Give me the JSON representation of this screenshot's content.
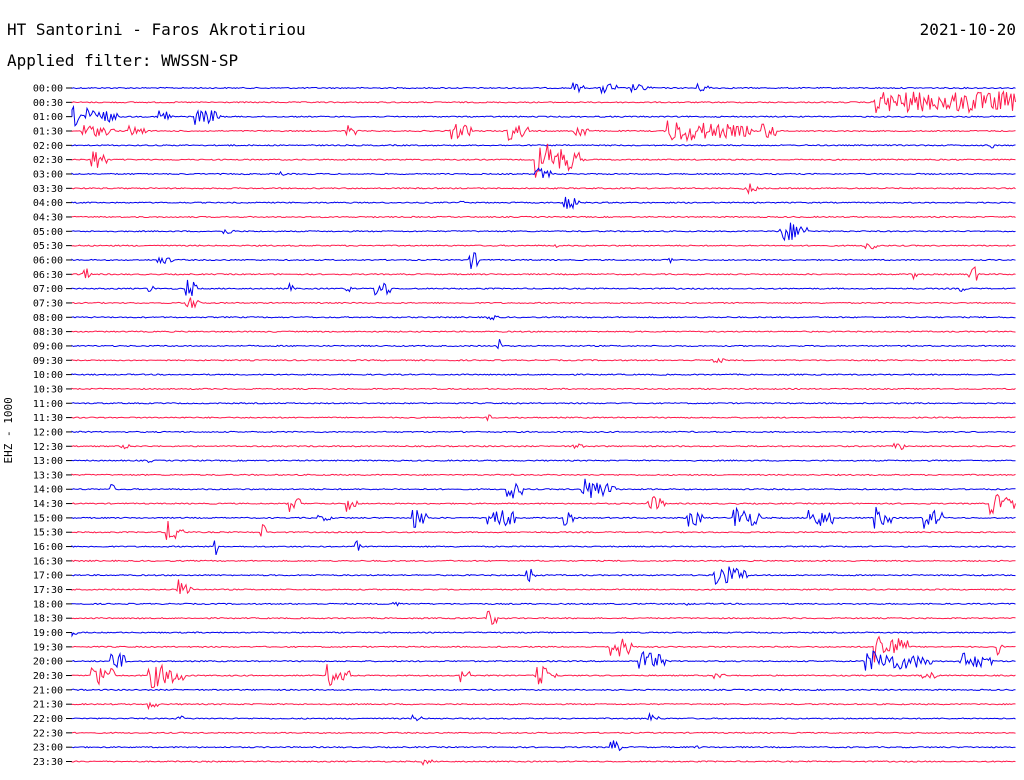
{
  "header": {
    "title": "HT Santorini - Faros Akrotiriou",
    "date": "2021-10-20",
    "filter": "Applied filter: WWSSN-SP"
  },
  "chart_data": {
    "type": "line",
    "subtype": "helicorder",
    "title": "HT Santorini - Faros Akrotiriou",
    "ylabel": "EHZ - 1000",
    "xlabel": "",
    "row_colors": [
      "#0000ee",
      "#ff1a4b"
    ],
    "rows": [
      {
        "label": "00:00",
        "bursts": [
          [
            0.53,
            2,
            0.5
          ],
          [
            0.56,
            3,
            0.6
          ],
          [
            0.59,
            4,
            0.4
          ],
          [
            0.66,
            3,
            0.4
          ],
          [
            0.85,
            0,
            0
          ]
        ]
      },
      {
        "label": "00:30",
        "bursts": [
          [
            0.85,
            12,
            1.0
          ],
          [
            0.88,
            10,
            1.0
          ],
          [
            0.92,
            12,
            1.0
          ],
          [
            0.95,
            10,
            1.0
          ],
          [
            0.98,
            8,
            1.0
          ]
        ]
      },
      {
        "label": "01:00",
        "bursts": [
          [
            0.0,
            8,
            0.9
          ],
          [
            0.09,
            3,
            0.8
          ],
          [
            0.13,
            3,
            0.7
          ],
          [
            0.14,
            3,
            0.8
          ]
        ]
      },
      {
        "label": "01:30",
        "bursts": [
          [
            0.01,
            6,
            0.6
          ],
          [
            0.06,
            3,
            0.5
          ],
          [
            0.29,
            2,
            0.6
          ],
          [
            0.4,
            4,
            0.8
          ],
          [
            0.46,
            4,
            0.9
          ],
          [
            0.53,
            3,
            0.7
          ],
          [
            0.63,
            15,
            1.0
          ],
          [
            0.73,
            3,
            0.8
          ]
        ]
      },
      {
        "label": "02:00",
        "bursts": [
          [
            0.16,
            3,
            0.1
          ],
          [
            0.97,
            1,
            0.5
          ]
        ]
      },
      {
        "label": "02:30",
        "bursts": [
          [
            0.02,
            3,
            1.0
          ],
          [
            0.49,
            8,
            1.6
          ],
          [
            0.53,
            2,
            0.3
          ]
        ]
      },
      {
        "label": "03:00",
        "bursts": [
          [
            0.22,
            1,
            0.2
          ],
          [
            0.49,
            3,
            0.6
          ]
        ]
      },
      {
        "label": "03:30",
        "bursts": [
          [
            0.71,
            3,
            0.6
          ]
        ]
      },
      {
        "label": "04:00",
        "bursts": [
          [
            0.41,
            1,
            0.2
          ],
          [
            0.52,
            3,
            0.7
          ]
        ]
      },
      {
        "label": "04:30",
        "bursts": [
          [
            0.38,
            1,
            0.1
          ]
        ]
      },
      {
        "label": "05:00",
        "bursts": [
          [
            0.16,
            2,
            0.3
          ],
          [
            0.75,
            5,
            1.0
          ]
        ]
      },
      {
        "label": "05:30",
        "bursts": [
          [
            0.51,
            1,
            0.2
          ],
          [
            0.84,
            2,
            0.7
          ]
        ]
      },
      {
        "label": "06:00",
        "bursts": [
          [
            0.09,
            3,
            0.4
          ],
          [
            0.42,
            2,
            0.9
          ],
          [
            0.63,
            1,
            0.4
          ]
        ]
      },
      {
        "label": "06:30",
        "bursts": [
          [
            0.01,
            2,
            0.7
          ],
          [
            0.89,
            1,
            0.6
          ],
          [
            0.95,
            2,
            0.9
          ]
        ]
      },
      {
        "label": "07:00",
        "bursts": [
          [
            0.08,
            1,
            0.7
          ],
          [
            0.12,
            2,
            1.0
          ],
          [
            0.23,
            1,
            0.5
          ],
          [
            0.29,
            1,
            0.6
          ],
          [
            0.32,
            3,
            0.9
          ],
          [
            0.94,
            2,
            0.3
          ]
        ]
      },
      {
        "label": "07:30",
        "bursts": [
          [
            0.12,
            3,
            0.6
          ]
        ]
      },
      {
        "label": "08:00",
        "bursts": [
          [
            0.44,
            2,
            0.3
          ],
          [
            0.56,
            1,
            0.1
          ]
        ]
      },
      {
        "label": "08:30",
        "bursts": []
      },
      {
        "label": "09:00",
        "bursts": [
          [
            0.45,
            1,
            0.9
          ]
        ]
      },
      {
        "label": "09:30",
        "bursts": [
          [
            0.68,
            2,
            0.3
          ]
        ]
      },
      {
        "label": "10:00",
        "bursts": []
      },
      {
        "label": "10:30",
        "bursts": []
      },
      {
        "label": "11:00",
        "bursts": []
      },
      {
        "label": "11:30",
        "bursts": [
          [
            0.44,
            1,
            0.3
          ]
        ]
      },
      {
        "label": "12:00",
        "bursts": [
          [
            0.41,
            1,
            0.2
          ]
        ]
      },
      {
        "label": "12:30",
        "bursts": [
          [
            0.05,
            2,
            0.3
          ],
          [
            0.53,
            2,
            0.3
          ],
          [
            0.87,
            2,
            0.5
          ]
        ]
      },
      {
        "label": "13:00",
        "bursts": [
          [
            0.08,
            1,
            0.2
          ]
        ]
      },
      {
        "label": "13:30",
        "bursts": []
      },
      {
        "label": "14:00",
        "bursts": [
          [
            0.04,
            1,
            0.6
          ],
          [
            0.46,
            3,
            1.0
          ],
          [
            0.54,
            6,
            1.0
          ]
        ]
      },
      {
        "label": "14:30",
        "bursts": [
          [
            0.23,
            2,
            0.9
          ],
          [
            0.29,
            2,
            0.8
          ],
          [
            0.61,
            3,
            0.8
          ],
          [
            0.97,
            5,
            1.0
          ]
        ]
      },
      {
        "label": "15:00",
        "bursts": [
          [
            0.26,
            3,
            0.3
          ],
          [
            0.36,
            3,
            1.0
          ],
          [
            0.44,
            5,
            1.2
          ],
          [
            0.52,
            2,
            0.7
          ],
          [
            0.65,
            3,
            1.0
          ],
          [
            0.7,
            5,
            1.1
          ],
          [
            0.78,
            5,
            1.0
          ],
          [
            0.85,
            3,
            1.0
          ],
          [
            0.9,
            4,
            1.0
          ]
        ]
      },
      {
        "label": "15:30",
        "bursts": [
          [
            0.1,
            3,
            1.0
          ],
          [
            0.2,
            1,
            1.0
          ]
        ]
      },
      {
        "label": "16:00",
        "bursts": [
          [
            0.15,
            1,
            1.0
          ],
          [
            0.3,
            1,
            0.6
          ]
        ]
      },
      {
        "label": "16:30",
        "bursts": []
      },
      {
        "label": "17:00",
        "bursts": [
          [
            0.48,
            2,
            1.0
          ],
          [
            0.68,
            6,
            1.0
          ]
        ]
      },
      {
        "label": "17:30",
        "bursts": [
          [
            0.11,
            3,
            1.0
          ]
        ]
      },
      {
        "label": "18:00",
        "bursts": [
          [
            0.34,
            2,
            0.2
          ],
          [
            0.65,
            1,
            0.2
          ]
        ]
      },
      {
        "label": "18:30",
        "bursts": [
          [
            0.44,
            2,
            0.8
          ]
        ]
      },
      {
        "label": "19:00",
        "bursts": [
          [
            0.0,
            1,
            0.3
          ]
        ]
      },
      {
        "label": "19:30",
        "bursts": [
          [
            0.57,
            4,
            1.2
          ],
          [
            0.85,
            6,
            1.4
          ],
          [
            0.98,
            1,
            0.8
          ]
        ]
      },
      {
        "label": "20:00",
        "bursts": [
          [
            0.04,
            3,
            1.0
          ],
          [
            0.6,
            5,
            1.0
          ],
          [
            0.84,
            12,
            1.0
          ],
          [
            0.94,
            6,
            0.8
          ]
        ]
      },
      {
        "label": "20:30",
        "bursts": [
          [
            0.02,
            5,
            1.1
          ],
          [
            0.08,
            7,
            1.1
          ],
          [
            0.27,
            4,
            1.0
          ],
          [
            0.41,
            2,
            1.0
          ],
          [
            0.49,
            4,
            1.0
          ],
          [
            0.68,
            2,
            0.3
          ],
          [
            0.9,
            3,
            0.4
          ]
        ]
      },
      {
        "label": "21:00",
        "bursts": [
          [
            0.0,
            1,
            0.1
          ],
          [
            0.75,
            1,
            0.1
          ]
        ]
      },
      {
        "label": "21:30",
        "bursts": [
          [
            0.08,
            2,
            0.4
          ]
        ]
      },
      {
        "label": "22:00",
        "bursts": [
          [
            0.11,
            2,
            0.3
          ],
          [
            0.36,
            2,
            0.3
          ],
          [
            0.61,
            2,
            0.5
          ]
        ]
      },
      {
        "label": "22:30",
        "bursts": []
      },
      {
        "label": "23:00",
        "bursts": [
          [
            0.57,
            2,
            0.7
          ],
          [
            0.66,
            1,
            0.2
          ]
        ]
      },
      {
        "label": "23:30",
        "bursts": [
          [
            0.37,
            2,
            0.3
          ]
        ]
      }
    ]
  }
}
